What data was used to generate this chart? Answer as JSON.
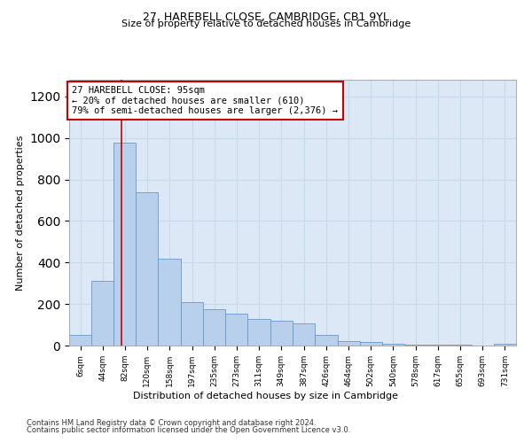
{
  "title1": "27, HAREBELL CLOSE, CAMBRIDGE, CB1 9YL",
  "title2": "Size of property relative to detached houses in Cambridge",
  "xlabel": "Distribution of detached houses by size in Cambridge",
  "ylabel": "Number of detached properties",
  "bin_edges": [
    6,
    44,
    82,
    120,
    158,
    197,
    235,
    273,
    311,
    349,
    387,
    426,
    464,
    502,
    540,
    578,
    617,
    655,
    693,
    731,
    769
  ],
  "bar_heights": [
    50,
    310,
    975,
    740,
    420,
    210,
    175,
    155,
    130,
    120,
    105,
    50,
    20,
    15,
    10,
    5,
    3,
    3,
    2,
    10
  ],
  "bar_color": "#b8d0eb",
  "bar_edge_color": "#6699cc",
  "red_line_x": 95,
  "annotation_text": "27 HAREBELL CLOSE: 95sqm\n← 20% of detached houses are smaller (610)\n79% of semi-detached houses are larger (2,376) →",
  "annotation_box_facecolor": "#ffffff",
  "annotation_box_edgecolor": "#cc0000",
  "ylim": [
    0,
    1280
  ],
  "yticks": [
    0,
    200,
    400,
    600,
    800,
    1000,
    1200
  ],
  "grid_color": "#c8d8ec",
  "background_color": "#dce8f5",
  "footer1": "Contains HM Land Registry data © Crown copyright and database right 2024.",
  "footer2": "Contains public sector information licensed under the Open Government Licence v3.0."
}
